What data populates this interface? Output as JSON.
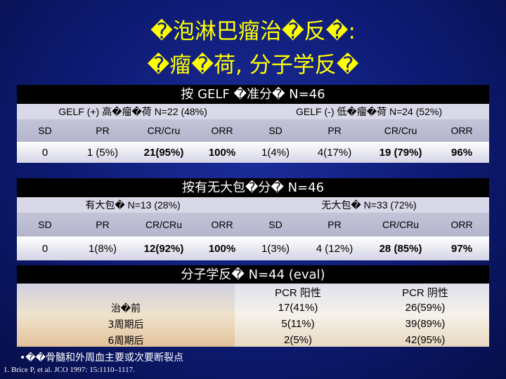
{
  "title": {
    "line1": "�泡淋巴瘤治�反�:",
    "line2": "�瘤�荷, 分子学反�"
  },
  "section1": {
    "bar": "按 GELF �准分� N=46",
    "group_left": "GELF (+) 高�瘤�荷 N=22 (48%)",
    "group_right": "GELF (-) 低�瘤�荷 N=24 (52%)",
    "headers": [
      "SD",
      "PR",
      "CR/Cru",
      "ORR",
      "SD",
      "PR",
      "CR/Cru",
      "ORR"
    ],
    "values": [
      "0",
      "1 (5%)",
      "21(95%)",
      "100%",
      "1(4%)",
      "4(17%)",
      "19 (79%)",
      "96%"
    ]
  },
  "section2": {
    "bar": "按有无大包�分� N=46",
    "group_left": "有大包� N=13 (28%)",
    "group_right": "无大包� N=33 (72%)",
    "headers": [
      "SD",
      "PR",
      "CR/CRu",
      "ORR",
      "SD",
      "PR",
      "CR/CRu",
      "ORR"
    ],
    "values": [
      "0",
      "1(8%)",
      "12(92%)",
      "100%",
      "1(3%)",
      "4 (12%)",
      "28 (85%)",
      "97%"
    ]
  },
  "section3": {
    "bar": "分子学反�  N=44 (eval)",
    "col_pos": "PCR 阳性",
    "col_neg": "PCR 阴性",
    "rows": [
      {
        "label": "治�前",
        "pos": "17(41%)",
        "neg": "26(59%)"
      },
      {
        "label": "3周期后",
        "pos": "5(11%)",
        "neg": "39(89%)"
      },
      {
        "label": "6周期后",
        "pos": "2(5%)",
        "neg": "42(95%)"
      }
    ]
  },
  "footnote": "•��骨髓和外周血主要或次要断裂点",
  "reference": "1. Brice P, et al. JCO 1997: 15:1110–1117."
}
